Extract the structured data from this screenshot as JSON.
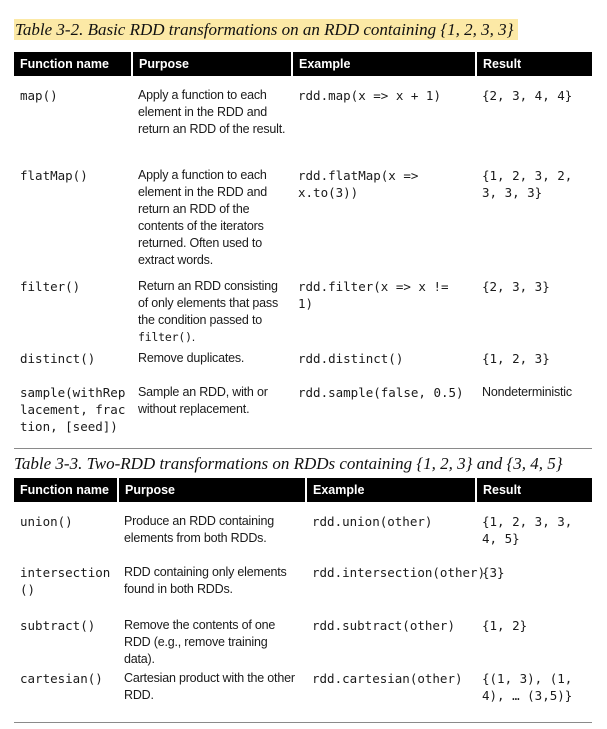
{
  "table1": {
    "caption": "Table 3-2. Basic RDD transformations on an RDD containing {1, 2, 3, 3}",
    "headers": [
      "Function name",
      "Purpose",
      "Example",
      "Result"
    ],
    "rows": [
      {
        "fn": "map()",
        "purpose": "Apply a function to each element in the RDD and return an RDD of the result.",
        "example": "rdd.map(x => x + 1)",
        "result": "{2, 3, 4, 4}"
      },
      {
        "fn": "flatMap()",
        "purpose": "Apply a function to each element in the RDD and return an RDD of the contents of the iterators returned. Often used to extract words.",
        "example": "rdd.flatMap(x => x.to(3))",
        "result": "{1, 2, 3, 2, 3, 3, 3}"
      },
      {
        "fn": "filter()",
        "purpose_pre": "Return an RDD consisting of only elements that pass the condition passed to ",
        "purpose_code": "filter()",
        "purpose_post": ".",
        "example": "rdd.filter(x => x != 1)",
        "result": "{2, 3, 3}"
      },
      {
        "fn": "distinct()",
        "purpose": "Remove duplicates.",
        "example": "rdd.distinct()",
        "result": "{1, 2, 3}"
      },
      {
        "fn": "sample(withReplacement, fraction, [seed])",
        "purpose": "Sample an RDD, with or without replacement.",
        "example": "rdd.sample(false, 0.5)",
        "result": "Nondeterministic"
      }
    ]
  },
  "table2": {
    "caption": "Table 3-3. Two-RDD transformations on RDDs containing {1, 2, 3} and {3, 4, 5}",
    "headers": [
      "Function name",
      "Purpose",
      "Example",
      "Result"
    ],
    "rows": [
      {
        "fn": "union()",
        "purpose": "Produce an RDD containing elements from both RDDs.",
        "example": "rdd.union(other)",
        "result": "{1, 2, 3, 3, 4, 5}"
      },
      {
        "fn": "intersection()",
        "purpose": "RDD containing only elements found in both RDDs.",
        "example": "rdd.intersection(other)",
        "result": "{3}"
      },
      {
        "fn": "subtract()",
        "purpose": "Remove the contents of one RDD (e.g., remove training data).",
        "example": "rdd.subtract(other)",
        "result": "{1, 2}"
      },
      {
        "fn": "cartesian()",
        "purpose": "Cartesian product with the other RDD.",
        "example": "rdd.cartesian(other)",
        "result": "{(1, 3), (1, 4), … (3,5)}"
      }
    ]
  }
}
